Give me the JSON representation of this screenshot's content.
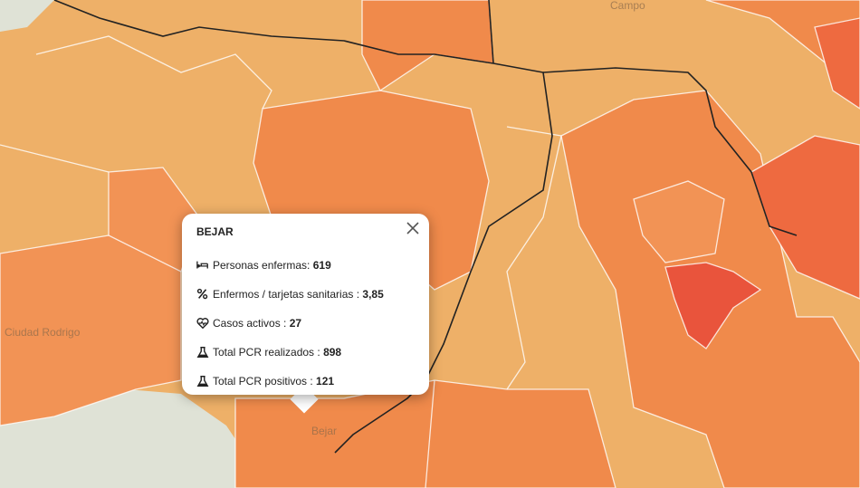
{
  "map": {
    "labels": [
      "Campo",
      "Ciudad Rodrigo",
      "Bejar"
    ]
  },
  "popup": {
    "title": "BEJAR",
    "rows": [
      {
        "label": "Personas enfermas: ",
        "value": "619"
      },
      {
        "label": "Enfermos / tarjetas sanitarias : ",
        "value": "3,85"
      },
      {
        "label": "Casos activos : ",
        "value": "27"
      },
      {
        "label": "Total PCR realizados : ",
        "value": "898"
      },
      {
        "label": "Total PCR positivos : ",
        "value": "121"
      }
    ]
  }
}
